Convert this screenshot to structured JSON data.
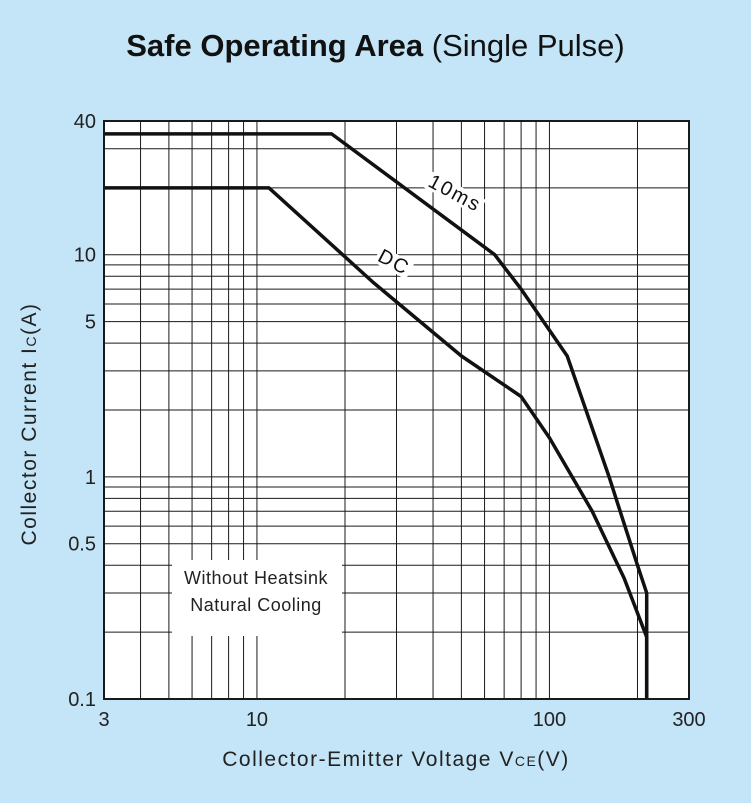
{
  "chart_data": {
    "type": "line",
    "title_bold": "Safe Operating Area",
    "title_rest": "(Single Pulse)",
    "xlabel_prefix": "Collector-Emitter Voltage V",
    "xlabel_sub": "CE",
    "xlabel_suffix": "(V)",
    "ylabel_prefix": "Collector Current I",
    "ylabel_sub": "C",
    "ylabel_suffix": "(A)",
    "x_scale": "log",
    "y_scale": "log",
    "xlim": [
      3,
      300
    ],
    "ylim": [
      0.1,
      40
    ],
    "x_ticks": [
      {
        "value": 3,
        "label": "3"
      },
      {
        "value": 10,
        "label": "10"
      },
      {
        "value": 100,
        "label": "100"
      },
      {
        "value": 300,
        "label": "300"
      }
    ],
    "y_ticks": [
      {
        "value": 0.1,
        "label": "0.1"
      },
      {
        "value": 0.5,
        "label": "0.5"
      },
      {
        "value": 1,
        "label": "1"
      },
      {
        "value": 5,
        "label": "5"
      },
      {
        "value": 10,
        "label": "10"
      },
      {
        "value": 40,
        "label": "40"
      }
    ],
    "grid": true,
    "series": [
      {
        "name": "10ms",
        "points": [
          [
            3,
            35
          ],
          [
            18,
            35
          ],
          [
            65,
            10
          ],
          [
            80,
            7
          ],
          [
            115,
            3.5
          ],
          [
            160,
            1
          ],
          [
            200,
            0.4
          ],
          [
            215,
            0.3
          ],
          [
            215,
            0.1
          ]
        ]
      },
      {
        "name": "DC",
        "points": [
          [
            3,
            20
          ],
          [
            11,
            20
          ],
          [
            25,
            7.5
          ],
          [
            50,
            3.5
          ],
          [
            80,
            2.3
          ],
          [
            100,
            1.5
          ],
          [
            140,
            0.7
          ],
          [
            180,
            0.35
          ],
          [
            215,
            0.19
          ],
          [
            215,
            0.1
          ]
        ]
      }
    ],
    "annotation": [
      "Without Heatsink",
      "Natural Cooling"
    ]
  }
}
